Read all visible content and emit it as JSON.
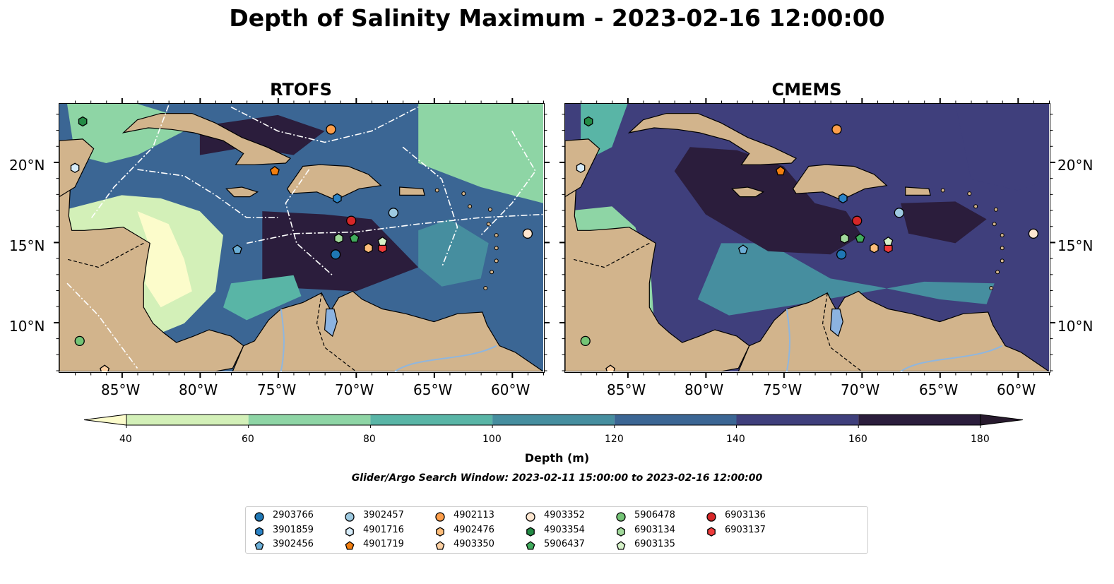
{
  "title": "Depth of Salinity Maximum - 2023-02-16 12:00:00",
  "panels": [
    {
      "title": "RTOFS"
    },
    {
      "title": "CMEMS"
    }
  ],
  "axes": {
    "lon_ticks": [
      "85°W",
      "80°W",
      "75°W",
      "70°W",
      "65°W",
      "60°W"
    ],
    "lon_values": [
      -85,
      -80,
      -75,
      -70,
      -65,
      -60
    ],
    "lat_ticks": [
      "20°N",
      "15°N",
      "10°N"
    ],
    "lat_values": [
      20,
      15,
      10
    ],
    "lon_range": [
      -89,
      -58
    ],
    "lat_range": [
      7,
      23.7
    ]
  },
  "colorbar": {
    "label": "Depth (m)",
    "ticks": [
      "40",
      "60",
      "80",
      "100",
      "120",
      "140",
      "160",
      "180"
    ],
    "colors": [
      "#fcfccb",
      "#d3f0b8",
      "#8ed5a5",
      "#59b5a6",
      "#468e9f",
      "#3b6694",
      "#3f3f7c",
      "#2b1d3c",
      "#281a2e"
    ],
    "extend": "both"
  },
  "search_window": "Glider/Argo Search Window: 2023-02-11 15:00:00 to 2023-02-16 12:00:00",
  "land_color": "#d2b48c",
  "legend": {
    "items": [
      {
        "id": "2903766",
        "marker": "circle",
        "color": "#1f77b4"
      },
      {
        "id": "3901859",
        "marker": "hexagon",
        "color": "#2b83c6"
      },
      {
        "id": "3902456",
        "marker": "pentagon",
        "color": "#6baed6"
      },
      {
        "id": "3902457",
        "marker": "circle",
        "color": "#9ecae1"
      },
      {
        "id": "4901716",
        "marker": "hexagon",
        "color": "#d6ecfa"
      },
      {
        "id": "4901719",
        "marker": "pentagon",
        "color": "#f27e0f"
      },
      {
        "id": "4902113",
        "marker": "circle",
        "color": "#fd9e4a"
      },
      {
        "id": "4902476",
        "marker": "hexagon",
        "color": "#fdbd7a"
      },
      {
        "id": "4903350",
        "marker": "pentagon",
        "color": "#fdd0a2"
      },
      {
        "id": "4903352",
        "marker": "circle",
        "color": "#fde6d0"
      },
      {
        "id": "4903354",
        "marker": "hexagon",
        "color": "#238b45"
      },
      {
        "id": "5906437",
        "marker": "pentagon",
        "color": "#41ab5d"
      },
      {
        "id": "5906478",
        "marker": "circle",
        "color": "#74c476"
      },
      {
        "id": "6903134",
        "marker": "hexagon",
        "color": "#a1d99b"
      },
      {
        "id": "6903135",
        "marker": "pentagon",
        "color": "#d6f2c9"
      },
      {
        "id": "6903136",
        "marker": "circle",
        "color": "#d62728"
      },
      {
        "id": "6903137",
        "marker": "hexagon",
        "color": "#ef3b3b"
      }
    ]
  },
  "floats": [
    {
      "id": "4903354",
      "lon": -87.5,
      "lat": 22.6
    },
    {
      "id": "4901716",
      "lon": -88.0,
      "lat": 19.7
    },
    {
      "id": "5906478",
      "lon": -87.7,
      "lat": 8.9
    },
    {
      "id": "4903350",
      "lon": -86.1,
      "lat": 7.1
    },
    {
      "id": "4902113",
      "lon": -71.6,
      "lat": 22.1
    },
    {
      "id": "4901719",
      "lon": -75.2,
      "lat": 19.5
    },
    {
      "id": "3901859",
      "lon": -71.2,
      "lat": 17.8
    },
    {
      "id": "3902457",
      "lon": -67.6,
      "lat": 16.9
    },
    {
      "id": "6903136",
      "lon": -70.3,
      "lat": 16.4
    },
    {
      "id": "2903766",
      "lon": -71.3,
      "lat": 14.3
    },
    {
      "id": "3902456",
      "lon": -77.6,
      "lat": 14.6
    },
    {
      "id": "6903134",
      "lon": -71.1,
      "lat": 15.3
    },
    {
      "id": "5906437",
      "lon": -70.1,
      "lat": 15.3
    },
    {
      "id": "4902476",
      "lon": -69.2,
      "lat": 14.7
    },
    {
      "id": "6903137",
      "lon": -68.3,
      "lat": 14.7
    },
    {
      "id": "6903135",
      "lon": -68.3,
      "lat": 15.1
    },
    {
      "id": "4903352",
      "lon": -59.0,
      "lat": 15.6
    }
  ]
}
